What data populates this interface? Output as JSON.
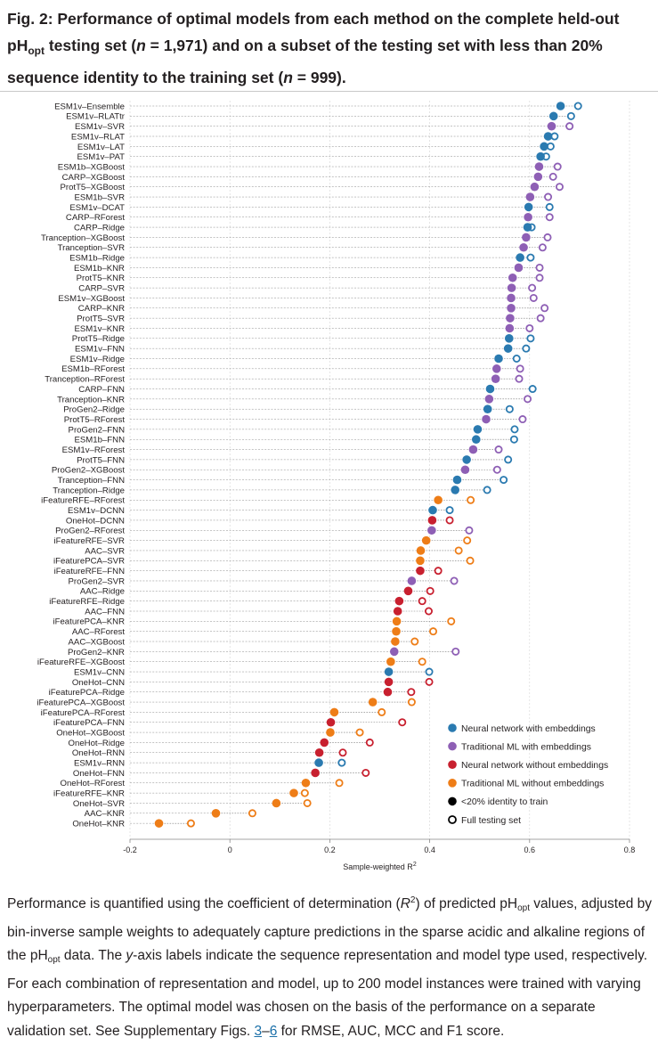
{
  "figure": {
    "title_prefix": "Fig. 2: Performance of optimal models from each method on the complete held-out ",
    "title_ph": "pH",
    "title_sub": "opt",
    "title_mid": " testing set (",
    "title_n1_label": "n",
    "title_n1_value": " = 1,971) and on a subset of the testing set with less than 20% sequence identity to the training set (",
    "title_n2_label": "n",
    "title_n2_value": " = 999)."
  },
  "caption": {
    "p1": "Performance is quantified using the coefficient of determination (",
    "r": "R",
    "r_sup": "2",
    "p2": ") of predicted pH",
    "ph_sub": "opt",
    "p3": " values, adjusted by bin-inverse sample weights to adequately capture predictions in the sparse acidic and alkaline regions of the pH",
    "ph_sub2": "opt",
    "p4": " data. The ",
    "y_axis": "y",
    "p5": "-axis labels indicate the sequence representation and model type used, respectively. For each combination of representation and model, up to 200 model instances were trained with varying hyperparameters. The optimal model was chosen on the basis of the performance on a separate validation set. See Supplementary Figs. ",
    "link1": "3",
    "dash": "–",
    "link2": "6",
    "p6": " for RMSE, AUC, MCC and F1 score."
  },
  "colors": {
    "nn_emb": "#2a7ab0",
    "trad_emb": "#8e5fb5",
    "nn_noemb": "#c8202f",
    "trad_noemb": "#ee7d17"
  },
  "chart_data": {
    "type": "scatter",
    "xlabel": "Sample-weighted R",
    "xlabel_sup": "2",
    "xlim": [
      -0.2,
      0.8
    ],
    "xticks": [
      "-0.2",
      "0",
      "0.2",
      "0.4",
      "0.6",
      "0.8"
    ],
    "xtick_values": [
      -0.2,
      0,
      0.2,
      0.4,
      0.6,
      0.8
    ],
    "legend_position": "right",
    "legend": [
      {
        "key": "nn_emb",
        "label": "Neural network with embeddings",
        "marker": "filled"
      },
      {
        "key": "trad_emb",
        "label": "Traditional ML with embeddings",
        "marker": "filled"
      },
      {
        "key": "nn_noemb",
        "label": "Neural network without embeddings",
        "marker": "filled"
      },
      {
        "key": "trad_noemb",
        "label": "Traditional ML without embeddings",
        "marker": "filled"
      },
      {
        "key": "black",
        "label": "<20% identity to train",
        "marker": "filled"
      },
      {
        "key": "black",
        "label": "Full testing set",
        "marker": "open"
      }
    ],
    "series_names": {
      "low_identity": "<20% identity to train",
      "full": "Full testing set"
    },
    "models": [
      {
        "name": "ESM1v–Ensemble",
        "cat": "nn_emb",
        "low": 0.662,
        "full": 0.697
      },
      {
        "name": "ESM1v–RLATtr",
        "cat": "nn_emb",
        "low": 0.648,
        "full": 0.683
      },
      {
        "name": "ESM1v–SVR",
        "cat": "trad_emb",
        "low": 0.644,
        "full": 0.68
      },
      {
        "name": "ESM1v–RLAT",
        "cat": "nn_emb",
        "low": 0.637,
        "full": 0.65
      },
      {
        "name": "ESM1v–LAT",
        "cat": "nn_emb",
        "low": 0.629,
        "full": 0.642
      },
      {
        "name": "ESM1v–PAT",
        "cat": "nn_emb",
        "low": 0.622,
        "full": 0.633
      },
      {
        "name": "ESM1b–XGBoost",
        "cat": "trad_emb",
        "low": 0.619,
        "full": 0.656
      },
      {
        "name": "CARP–XGBoost",
        "cat": "trad_emb",
        "low": 0.617,
        "full": 0.647
      },
      {
        "name": "ProtT5–XGBoost",
        "cat": "trad_emb",
        "low": 0.61,
        "full": 0.66
      },
      {
        "name": "ESM1b–SVR",
        "cat": "trad_emb",
        "low": 0.601,
        "full": 0.637
      },
      {
        "name": "ESM1v–DCAT",
        "cat": "nn_emb",
        "low": 0.598,
        "full": 0.64
      },
      {
        "name": "CARP–RForest",
        "cat": "trad_emb",
        "low": 0.597,
        "full": 0.64
      },
      {
        "name": "CARP–Ridge",
        "cat": "nn_emb",
        "low": 0.596,
        "full": 0.604
      },
      {
        "name": "Tranception–XGBoost",
        "cat": "trad_emb",
        "low": 0.593,
        "full": 0.636
      },
      {
        "name": "Tranception–SVR",
        "cat": "trad_emb",
        "low": 0.588,
        "full": 0.626
      },
      {
        "name": "ESM1b–Ridge",
        "cat": "nn_emb",
        "low": 0.581,
        "full": 0.602
      },
      {
        "name": "ESM1b–KNR",
        "cat": "trad_emb",
        "low": 0.578,
        "full": 0.62
      },
      {
        "name": "ProtT5–KNR",
        "cat": "trad_emb",
        "low": 0.566,
        "full": 0.62
      },
      {
        "name": "CARP–SVR",
        "cat": "trad_emb",
        "low": 0.564,
        "full": 0.605
      },
      {
        "name": "ESM1v–XGBoost",
        "cat": "trad_emb",
        "low": 0.563,
        "full": 0.608
      },
      {
        "name": "CARP–KNR",
        "cat": "trad_emb",
        "low": 0.563,
        "full": 0.63
      },
      {
        "name": "ProtT5–SVR",
        "cat": "trad_emb",
        "low": 0.561,
        "full": 0.622
      },
      {
        "name": "ESM1v–KNR",
        "cat": "trad_emb",
        "low": 0.56,
        "full": 0.6
      },
      {
        "name": "ProtT5–Ridge",
        "cat": "nn_emb",
        "low": 0.559,
        "full": 0.602
      },
      {
        "name": "ESM1v–FNN",
        "cat": "nn_emb",
        "low": 0.557,
        "full": 0.593
      },
      {
        "name": "ESM1v–Ridge",
        "cat": "nn_emb",
        "low": 0.538,
        "full": 0.574
      },
      {
        "name": "ESM1b–RForest",
        "cat": "trad_emb",
        "low": 0.534,
        "full": 0.581
      },
      {
        "name": "Tranception–RForest",
        "cat": "trad_emb",
        "low": 0.532,
        "full": 0.579
      },
      {
        "name": "CARP–FNN",
        "cat": "nn_emb",
        "low": 0.521,
        "full": 0.606
      },
      {
        "name": "Tranception–KNR",
        "cat": "trad_emb",
        "low": 0.519,
        "full": 0.596
      },
      {
        "name": "ProGen2–Ridge",
        "cat": "nn_emb",
        "low": 0.516,
        "full": 0.56
      },
      {
        "name": "ProtT5–RForest",
        "cat": "trad_emb",
        "low": 0.513,
        "full": 0.586
      },
      {
        "name": "ProGen2–FNN",
        "cat": "nn_emb",
        "low": 0.496,
        "full": 0.57
      },
      {
        "name": "ESM1b–FNN",
        "cat": "nn_emb",
        "low": 0.493,
        "full": 0.569
      },
      {
        "name": "ESM1v–RForest",
        "cat": "trad_emb",
        "low": 0.487,
        "full": 0.538
      },
      {
        "name": "ProtT5–FNN",
        "cat": "nn_emb",
        "low": 0.474,
        "full": 0.557
      },
      {
        "name": "ProGen2–XGBoost",
        "cat": "trad_emb",
        "low": 0.471,
        "full": 0.535
      },
      {
        "name": "Tranception–FNN",
        "cat": "nn_emb",
        "low": 0.455,
        "full": 0.548
      },
      {
        "name": "Tranception–Ridge",
        "cat": "nn_emb",
        "low": 0.451,
        "full": 0.515
      },
      {
        "name": "iFeatureRFE–RForest",
        "cat": "trad_noemb",
        "low": 0.417,
        "full": 0.482
      },
      {
        "name": "ESM1v–DCNN",
        "cat": "nn_emb",
        "low": 0.406,
        "full": 0.44
      },
      {
        "name": "OneHot–DCNN",
        "cat": "nn_noemb",
        "low": 0.405,
        "full": 0.44
      },
      {
        "name": "ProGen2–RForest",
        "cat": "trad_emb",
        "low": 0.404,
        "full": 0.479
      },
      {
        "name": "iFeatureRFE–SVR",
        "cat": "trad_noemb",
        "low": 0.393,
        "full": 0.475
      },
      {
        "name": "AAC–SVR",
        "cat": "trad_noemb",
        "low": 0.382,
        "full": 0.458
      },
      {
        "name": "iFeaturePCA–SVR",
        "cat": "trad_noemb",
        "low": 0.381,
        "full": 0.481
      },
      {
        "name": "iFeatureRFE–FNN",
        "cat": "nn_noemb",
        "low": 0.381,
        "full": 0.417
      },
      {
        "name": "ProGen2–SVR",
        "cat": "trad_emb",
        "low": 0.364,
        "full": 0.449
      },
      {
        "name": "AAC–Ridge",
        "cat": "nn_noemb",
        "low": 0.357,
        "full": 0.401
      },
      {
        "name": "iFeatureRFE–Ridge",
        "cat": "nn_noemb",
        "low": 0.339,
        "full": 0.385
      },
      {
        "name": "AAC–FNN",
        "cat": "nn_noemb",
        "low": 0.336,
        "full": 0.398
      },
      {
        "name": "iFeaturePCA–KNR",
        "cat": "trad_noemb",
        "low": 0.334,
        "full": 0.443
      },
      {
        "name": "AAC–RForest",
        "cat": "trad_noemb",
        "low": 0.333,
        "full": 0.407
      },
      {
        "name": "AAC–XGBoost",
        "cat": "trad_noemb",
        "low": 0.331,
        "full": 0.37
      },
      {
        "name": "ProGen2–KNR",
        "cat": "trad_emb",
        "low": 0.329,
        "full": 0.452
      },
      {
        "name": "iFeatureRFE–XGBoost",
        "cat": "trad_noemb",
        "low": 0.322,
        "full": 0.385
      },
      {
        "name": "ESM1v–CNN",
        "cat": "nn_emb",
        "low": 0.318,
        "full": 0.399
      },
      {
        "name": "OneHot–CNN",
        "cat": "nn_noemb",
        "low": 0.318,
        "full": 0.399
      },
      {
        "name": "iFeaturePCA–Ridge",
        "cat": "nn_noemb",
        "low": 0.316,
        "full": 0.363
      },
      {
        "name": "iFeaturePCA–XGBoost",
        "cat": "trad_noemb",
        "low": 0.286,
        "full": 0.364
      },
      {
        "name": "iFeaturePCA–RForest",
        "cat": "trad_noemb",
        "low": 0.209,
        "full": 0.304
      },
      {
        "name": "iFeaturePCA–FNN",
        "cat": "nn_noemb",
        "low": 0.202,
        "full": 0.345
      },
      {
        "name": "OneHot–XGBoost",
        "cat": "trad_noemb",
        "low": 0.201,
        "full": 0.26
      },
      {
        "name": "OneHot–Ridge",
        "cat": "nn_noemb",
        "low": 0.189,
        "full": 0.28
      },
      {
        "name": "OneHot–RNN",
        "cat": "nn_noemb",
        "low": 0.179,
        "full": 0.226
      },
      {
        "name": "ESM1v–RNN",
        "cat": "nn_emb",
        "low": 0.178,
        "full": 0.224
      },
      {
        "name": "OneHot–FNN",
        "cat": "nn_noemb",
        "low": 0.171,
        "full": 0.272
      },
      {
        "name": "OneHot–RForest",
        "cat": "trad_noemb",
        "low": 0.152,
        "full": 0.219
      },
      {
        "name": "iFeatureRFE–KNR",
        "cat": "trad_noemb",
        "low": 0.128,
        "full": 0.15
      },
      {
        "name": "OneHot–SVR",
        "cat": "trad_noemb",
        "low": 0.093,
        "full": 0.155
      },
      {
        "name": "AAC–KNR",
        "cat": "trad_noemb",
        "low": -0.028,
        "full": 0.045
      },
      {
        "name": "OneHot–KNR",
        "cat": "trad_noemb",
        "low": -0.142,
        "full": -0.078
      }
    ]
  }
}
